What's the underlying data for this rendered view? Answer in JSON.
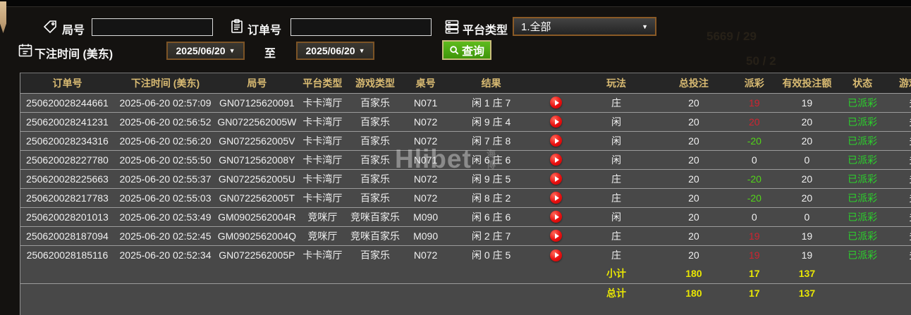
{
  "page": {
    "watermark": "Hlibet",
    "watermark_seal": "海博"
  },
  "filters": {
    "round": {
      "label": "局号",
      "value": ""
    },
    "order": {
      "label": "订单号",
      "value": ""
    },
    "platform": {
      "label": "平台类型",
      "value": "1.全部"
    },
    "bet_time": {
      "label": "下注时间 (美东)",
      "from": "2025/06/20",
      "to_separator": "至",
      "to": "2025/06/20"
    },
    "query_button": "查询"
  },
  "ghost_text": [
    "5669 / 29",
    "50 / 2"
  ],
  "table": {
    "columns": [
      "订单号",
      "下注时间 (美东)",
      "局号",
      "平台类型",
      "游戏类型",
      "桌号",
      "结果",
      "",
      "玩法",
      "总投注",
      "派彩",
      "有效投注额",
      "状态",
      "游戏模式"
    ],
    "rows": [
      {
        "order_no": "250620028244661",
        "bet_time": "2025-06-20 02:57:09",
        "round_no": "GN07125620091",
        "platform": "卡卡湾厅",
        "game_type": "百家乐",
        "table_no": "N071",
        "result": "闲 1 庄 7",
        "play": "庄",
        "total_bet": "20",
        "payout": "19",
        "payout_tone": "win",
        "valid_bet": "19",
        "status": "已派彩",
        "mode": "多台"
      },
      {
        "order_no": "250620028241231",
        "bet_time": "2025-06-20 02:56:52",
        "round_no": "GN0722562005W",
        "platform": "卡卡湾厅",
        "game_type": "百家乐",
        "table_no": "N072",
        "result": "闲 9 庄 4",
        "play": "闲",
        "total_bet": "20",
        "payout": "20",
        "payout_tone": "win",
        "valid_bet": "20",
        "status": "已派彩",
        "mode": "多台"
      },
      {
        "order_no": "250620028234316",
        "bet_time": "2025-06-20 02:56:20",
        "round_no": "GN0722562005V",
        "platform": "卡卡湾厅",
        "game_type": "百家乐",
        "table_no": "N072",
        "result": "闲 7 庄 8",
        "play": "闲",
        "total_bet": "20",
        "payout": "-20",
        "payout_tone": "loss",
        "valid_bet": "20",
        "status": "已派彩",
        "mode": "多台"
      },
      {
        "order_no": "250620028227780",
        "bet_time": "2025-06-20 02:55:50",
        "round_no": "GN0712562008Y",
        "platform": "卡卡湾厅",
        "game_type": "百家乐",
        "table_no": "N071",
        "result": "闲 6 庄 6",
        "play": "闲",
        "total_bet": "20",
        "payout": "0",
        "payout_tone": "zero",
        "valid_bet": "0",
        "status": "已派彩",
        "mode": "多台"
      },
      {
        "order_no": "250620028225663",
        "bet_time": "2025-06-20 02:55:37",
        "round_no": "GN0722562005U",
        "platform": "卡卡湾厅",
        "game_type": "百家乐",
        "table_no": "N072",
        "result": "闲 9 庄 5",
        "play": "庄",
        "total_bet": "20",
        "payout": "-20",
        "payout_tone": "loss",
        "valid_bet": "20",
        "status": "已派彩",
        "mode": "多台"
      },
      {
        "order_no": "250620028217783",
        "bet_time": "2025-06-20 02:55:03",
        "round_no": "GN0722562005T",
        "platform": "卡卡湾厅",
        "game_type": "百家乐",
        "table_no": "N072",
        "result": "闲 8 庄 2",
        "play": "庄",
        "total_bet": "20",
        "payout": "-20",
        "payout_tone": "loss",
        "valid_bet": "20",
        "status": "已派彩",
        "mode": "多台"
      },
      {
        "order_no": "250620028201013",
        "bet_time": "2025-06-20 02:53:49",
        "round_no": "GM0902562004R",
        "platform": "竞咪厅",
        "game_type": "竞咪百家乐",
        "table_no": "M090",
        "result": "闲 6 庄 6",
        "play": "闲",
        "total_bet": "20",
        "payout": "0",
        "payout_tone": "zero",
        "valid_bet": "0",
        "status": "已派彩",
        "mode": "多台"
      },
      {
        "order_no": "250620028187094",
        "bet_time": "2025-06-20 02:52:45",
        "round_no": "GM0902562004Q",
        "platform": "竞咪厅",
        "game_type": "竞咪百家乐",
        "table_no": "M090",
        "result": "闲 2 庄 7",
        "play": "庄",
        "total_bet": "20",
        "payout": "19",
        "payout_tone": "win",
        "valid_bet": "19",
        "status": "已派彩",
        "mode": "多台"
      },
      {
        "order_no": "250620028185116",
        "bet_time": "2025-06-20 02:52:34",
        "round_no": "GN0722562005P",
        "platform": "卡卡湾厅",
        "game_type": "百家乐",
        "table_no": "N072",
        "result": "闲 0 庄 5",
        "play": "庄",
        "total_bet": "20",
        "payout": "19",
        "payout_tone": "win",
        "valid_bet": "19",
        "status": "已派彩",
        "mode": "多台"
      }
    ],
    "subtotal": {
      "label": "小计",
      "total_bet": "180",
      "payout": "17",
      "valid_bet": "137"
    },
    "grand_total": {
      "label": "总计",
      "total_bet": "180",
      "payout": "17",
      "valid_bet": "137"
    }
  },
  "colors": {
    "header_text": "#d8ba72",
    "row_bg": "#484848",
    "payout_win": "#cf2430",
    "payout_loss": "#52d419",
    "status_paid": "#2bd22b",
    "totals_text": "#e8e604",
    "query_button_bg": "#4fa814",
    "select_border": "#8a5a26",
    "deco_tan": "#c3a278"
  }
}
